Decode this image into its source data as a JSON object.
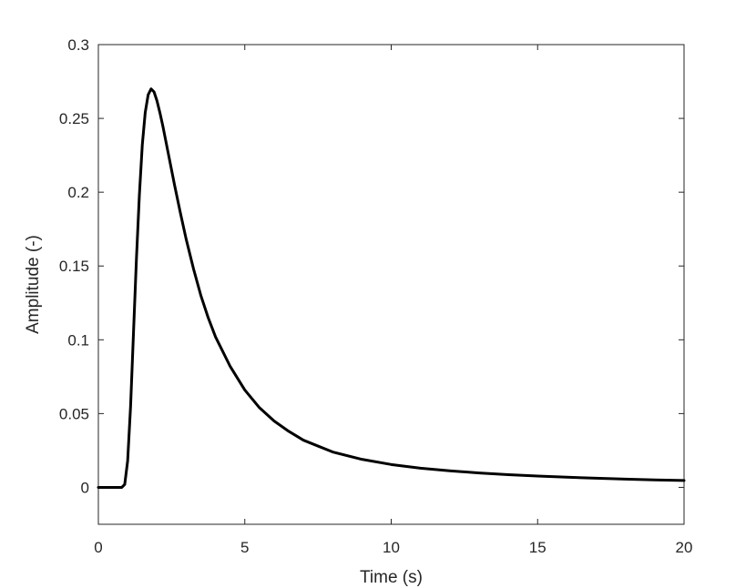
{
  "chart_data": {
    "type": "line",
    "title": "",
    "xlabel": "Time (s)",
    "ylabel": "Amplitude (-)",
    "xlim": [
      0,
      20
    ],
    "ylim": [
      -0.025,
      0.3
    ],
    "x_ticks": [
      0,
      5,
      10,
      15,
      20
    ],
    "x_tick_labels": [
      "0",
      "5",
      "10",
      "15",
      "20"
    ],
    "y_ticks": [
      0,
      0.05,
      0.1,
      0.15,
      0.2,
      0.25,
      0.3
    ],
    "y_tick_labels": [
      "0",
      "0.05",
      "0.1",
      "0.15",
      "0.2",
      "0.25",
      "0.3"
    ],
    "grid": false,
    "legend": "none",
    "series": [
      {
        "color": "#000000",
        "x": [
          0,
          0.5,
          0.8,
          0.9,
          1.0,
          1.1,
          1.2,
          1.3,
          1.4,
          1.5,
          1.6,
          1.7,
          1.8,
          1.9,
          2.0,
          2.1,
          2.2,
          2.4,
          2.6,
          2.8,
          3.0,
          3.25,
          3.5,
          3.75,
          4.0,
          4.5,
          5.0,
          5.5,
          6.0,
          6.5,
          7.0,
          7.5,
          8.0,
          9.0,
          10.0,
          11.0,
          12.0,
          13.0,
          14.0,
          15.0,
          16.0,
          17.0,
          18.0,
          19.0,
          20.0
        ],
        "y": [
          0,
          0,
          0,
          0.002,
          0.018,
          0.055,
          0.105,
          0.155,
          0.198,
          0.232,
          0.254,
          0.266,
          0.27,
          0.268,
          0.262,
          0.254,
          0.245,
          0.225,
          0.205,
          0.186,
          0.168,
          0.148,
          0.13,
          0.115,
          0.102,
          0.082,
          0.066,
          0.054,
          0.045,
          0.038,
          0.032,
          0.028,
          0.024,
          0.019,
          0.0155,
          0.013,
          0.0112,
          0.0098,
          0.0086,
          0.0077,
          0.0069,
          0.0062,
          0.0056,
          0.0051,
          0.0047
        ]
      }
    ]
  }
}
